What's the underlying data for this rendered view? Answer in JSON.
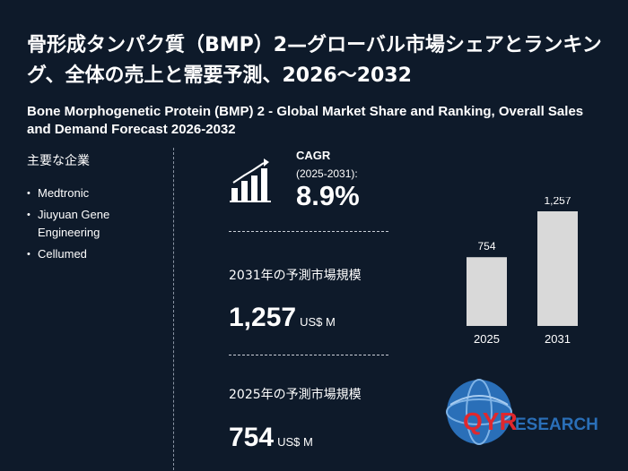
{
  "title_jp": "骨形成タンパク質（BMP）2—グローバル市場シェアとランキング、全体の売上と需要予測、2026～2032",
  "title_en": "Bone Morphogenetic Protein (BMP) 2 - Global Market Share and Ranking, Overall Sales and Demand Forecast 2026-2032",
  "players": {
    "heading": "主要な企業",
    "items": [
      "Medtronic",
      "Jiuyuan Gene Engineering",
      "Cellumed"
    ]
  },
  "cagr": {
    "label": "CAGR",
    "period": "(2025-2031):",
    "value": "8.9%"
  },
  "forecast_2031": {
    "label": "2031年の予測市場規模",
    "value": "1,257",
    "unit": "US$ M"
  },
  "forecast_2025": {
    "label": "2025年の予測市場規模",
    "value": "754",
    "unit": "US$ M"
  },
  "chart_data": {
    "type": "bar",
    "categories": [
      "2025",
      "2031"
    ],
    "values": [
      754,
      1257
    ],
    "value_labels": [
      "754",
      "1,257"
    ],
    "bar_color": "#d9d9d9"
  },
  "logo": {
    "text_qyr": "QYR",
    "text_research": "ESEARCH"
  },
  "colors": {
    "background": "#0e1a2a",
    "accent_red": "#e0282e",
    "logo_blue": "#2a6fb8"
  }
}
